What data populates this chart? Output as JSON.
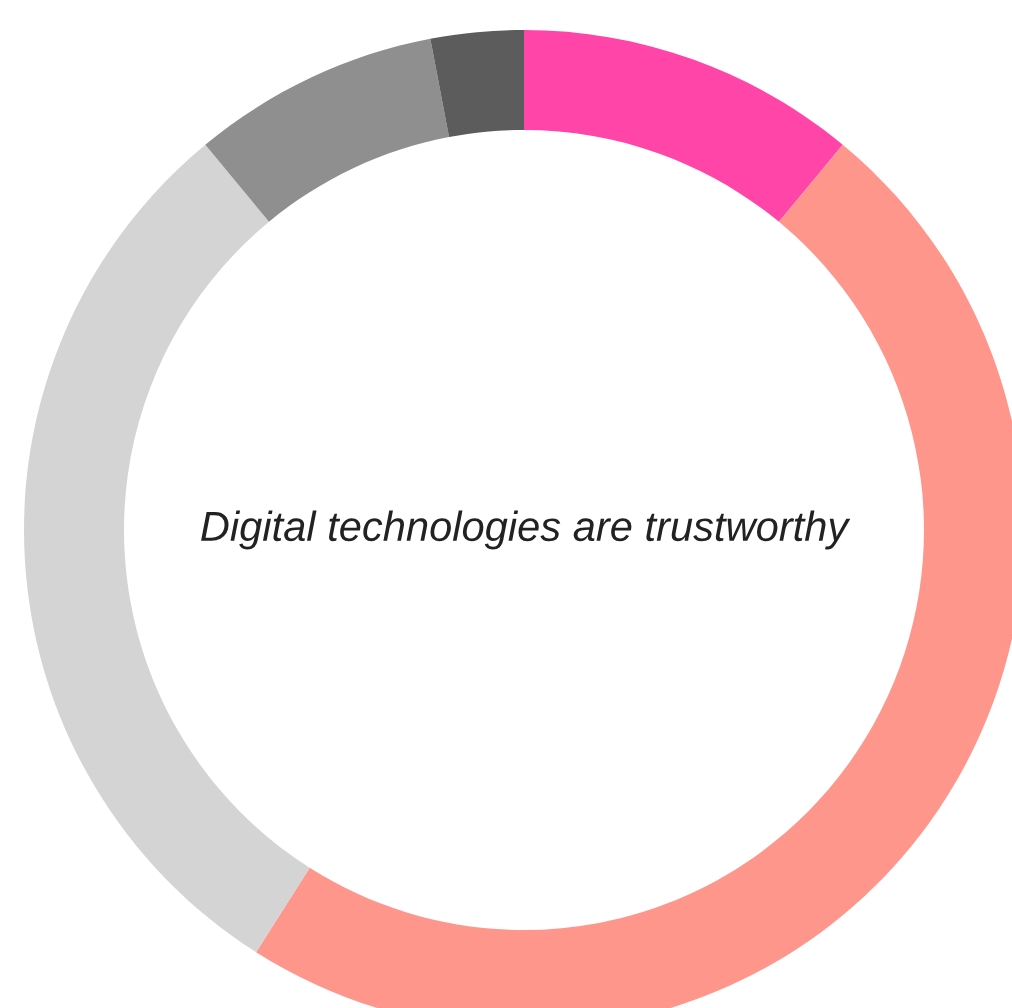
{
  "chart_data": {
    "type": "donut",
    "title": "Digital technologies are trustworthy",
    "categories": [
      null,
      null,
      null,
      null,
      null
    ],
    "values": [
      11,
      48,
      30,
      8,
      3
    ],
    "colors": [
      "#ff45a8",
      "#ff968c",
      "#d4d4d4",
      "#8f8f8f",
      "#5c5c5c"
    ]
  }
}
